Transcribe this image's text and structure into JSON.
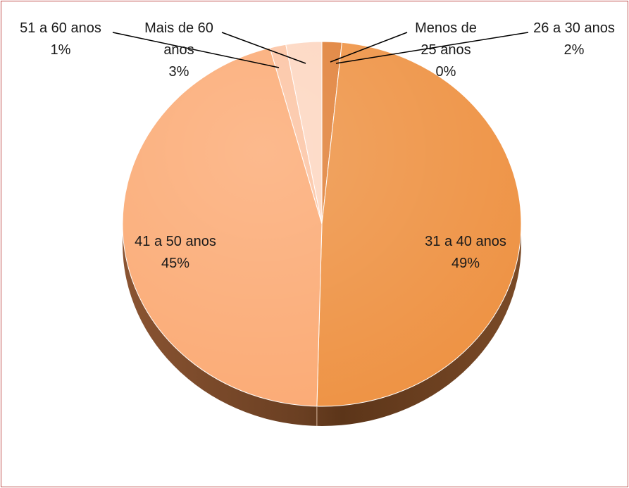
{
  "chart_data": {
    "type": "pie",
    "title": "",
    "slices": [
      {
        "label_lines": [
          "Menos de",
          "25 anos"
        ],
        "percent_label": "0%",
        "value": 0.0,
        "color": "#e3843a"
      },
      {
        "label_lines": [
          "26 a 30 anos"
        ],
        "percent_label": "2%",
        "value": 1.6,
        "color": "#e07f36"
      },
      {
        "label_lines": [
          "31 a 40 anos"
        ],
        "percent_label": "49%",
        "value": 48.8,
        "color": "#ee9243"
      },
      {
        "label_lines": [
          "41 a 50 anos"
        ],
        "percent_label": "45%",
        "value": 45.4,
        "color": "#fbaa74"
      },
      {
        "label_lines": [
          "51 a 60 anos"
        ],
        "percent_label": "1%",
        "value": 1.3,
        "color": "#fcc3a2"
      },
      {
        "label_lines": [
          "Mais de 60",
          "anos"
        ],
        "percent_label": "3%",
        "value": 2.9,
        "color": "#fdd6c0"
      }
    ],
    "style": "3d-pie",
    "legend": "none"
  }
}
